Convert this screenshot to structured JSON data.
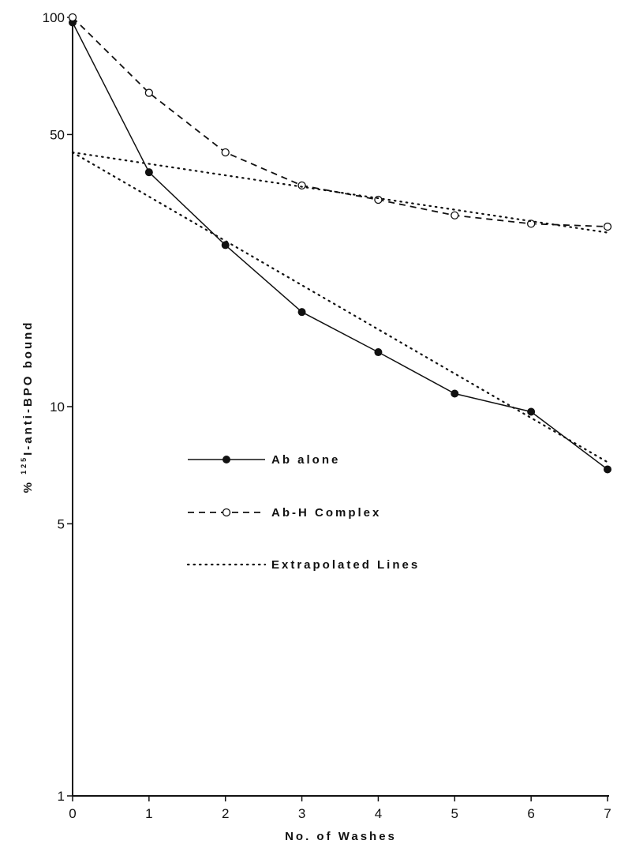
{
  "chart_data": {
    "type": "line",
    "xlabel": "No. of Washes",
    "ylabel": {
      "prefix": "% ",
      "superscript": "125",
      "main": "I-anti-BPO bound"
    },
    "x_ticks": [
      0,
      1,
      2,
      3,
      4,
      5,
      6,
      7
    ],
    "y_ticks": [
      1,
      5,
      10,
      50,
      100
    ],
    "xlim": [
      0,
      7
    ],
    "ylim": [
      1,
      100
    ],
    "y_scale": "log",
    "grid": false,
    "legend_position": "center-left",
    "series": [
      {
        "name": "Ab alone",
        "style": "solid",
        "marker": "filled-circle",
        "x": [
          0,
          1,
          2,
          3,
          4,
          5,
          6,
          7
        ],
        "y": [
          97,
          40,
          26,
          17.5,
          13.8,
          10.8,
          9.7,
          6.9
        ]
      },
      {
        "name": "Ab-H Complex",
        "style": "dashed",
        "marker": "open-circle",
        "x": [
          0,
          1,
          2,
          3,
          4,
          5,
          6,
          7
        ],
        "y": [
          100,
          64,
          45,
          37,
          34,
          31,
          29.5,
          29
        ]
      },
      {
        "name": "Extrapolated Lines",
        "style": "dotted",
        "marker": "none",
        "segments": [
          {
            "x": [
              0,
              7
            ],
            "y": [
              45,
              28
            ]
          },
          {
            "x": [
              0,
              7
            ],
            "y": [
              45,
              7.2
            ]
          }
        ]
      }
    ]
  }
}
